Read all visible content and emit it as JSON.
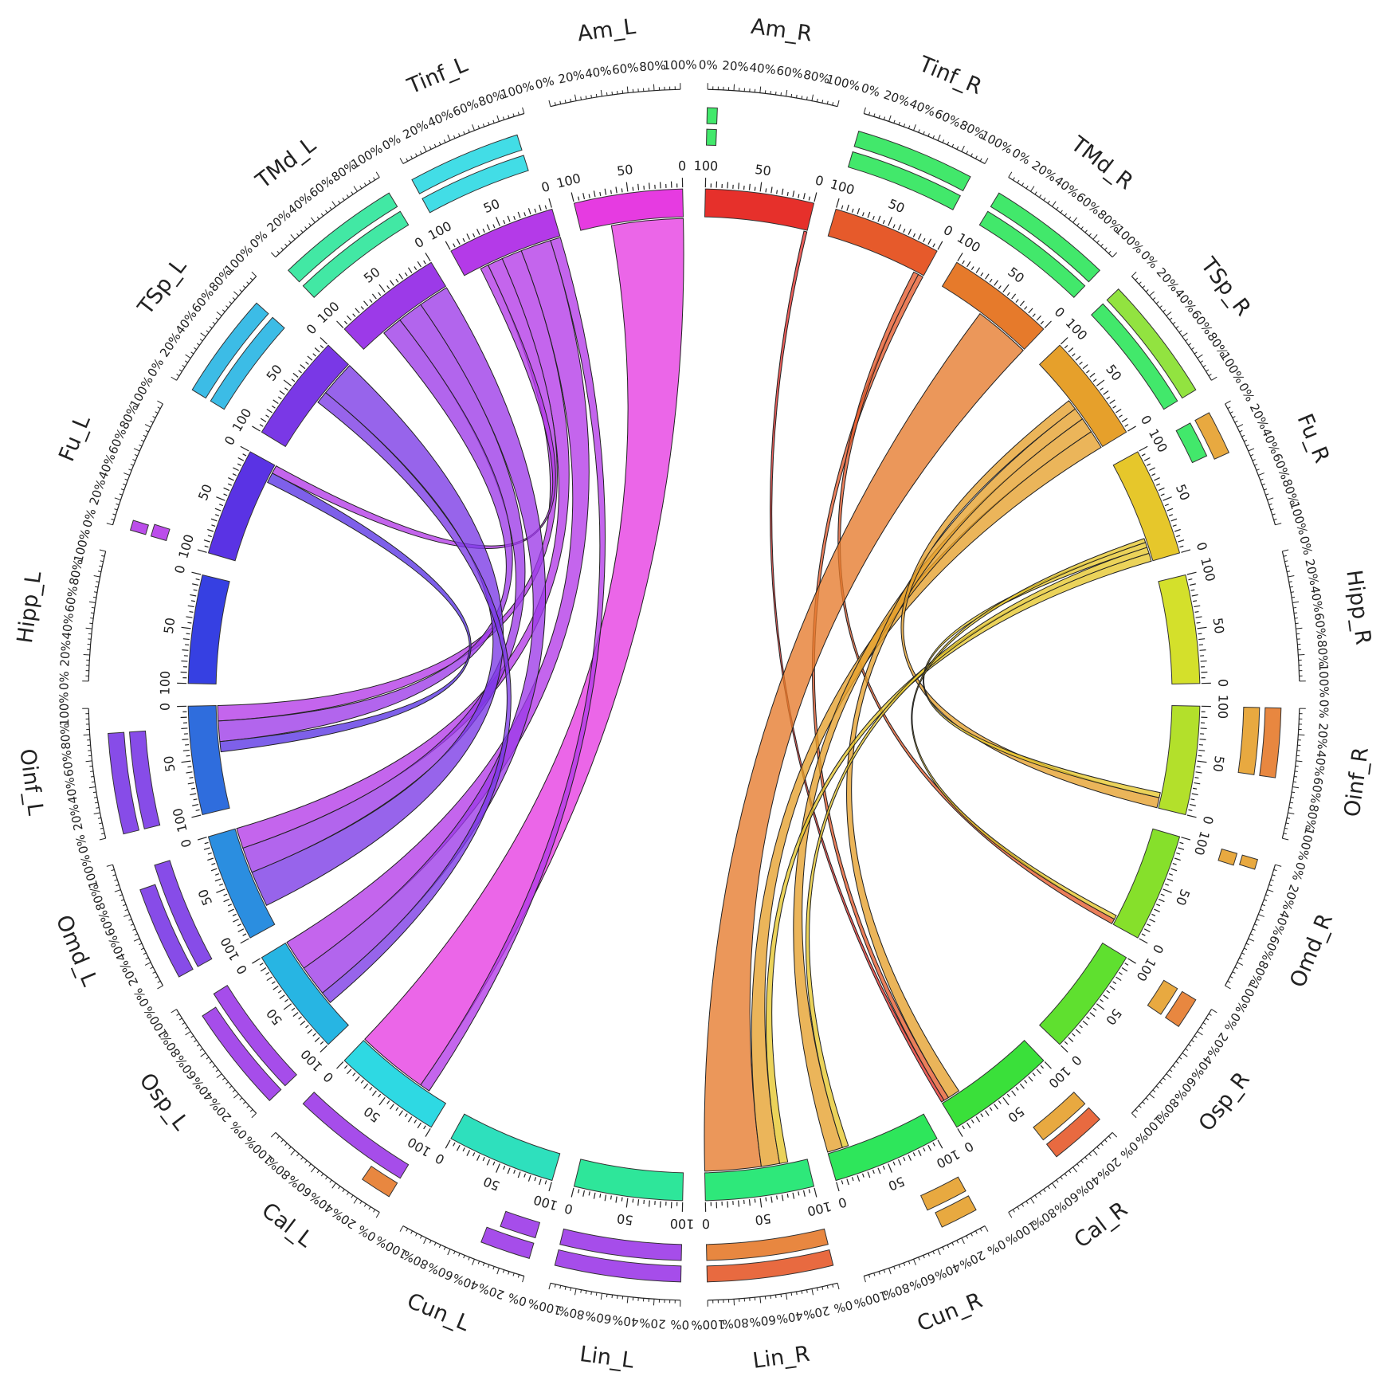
{
  "chart_data": {
    "type": "chord",
    "scale_labels": [
      "0",
      "50",
      "100"
    ],
    "pct_ticks": [
      "0%",
      "20%",
      "40%",
      "60%",
      "80%",
      "100%"
    ],
    "segments": [
      {
        "name": "Am_L",
        "color": "#e63be1"
      },
      {
        "name": "Tinf_L",
        "color": "#b43ae8"
      },
      {
        "name": "TMd_L",
        "color": "#9c3ae8"
      },
      {
        "name": "TSp_L",
        "color": "#7a38e6"
      },
      {
        "name": "Fu_L",
        "color": "#5a33e4"
      },
      {
        "name": "Hipp_L",
        "color": "#3640e2"
      },
      {
        "name": "Oinf_L",
        "color": "#2f6ddd"
      },
      {
        "name": "Omd_L",
        "color": "#2b8ee0"
      },
      {
        "name": "Osp_L",
        "color": "#27b5e3"
      },
      {
        "name": "Cal_L",
        "color": "#2ed9e3"
      },
      {
        "name": "Cun_L",
        "color": "#2ee0bd"
      },
      {
        "name": "Lin_L",
        "color": "#2ee69a"
      },
      {
        "name": "Lin_R",
        "color": "#2ee87a"
      },
      {
        "name": "Cun_R",
        "color": "#2ee65b"
      },
      {
        "name": "Cal_R",
        "color": "#3ae03a"
      },
      {
        "name": "Osp_R",
        "color": "#5fe02f"
      },
      {
        "name": "Omd_R",
        "color": "#86e02b"
      },
      {
        "name": "Oinf_R",
        "color": "#b3e02b"
      },
      {
        "name": "Hipp_R",
        "color": "#d4e02b"
      },
      {
        "name": "Fu_R",
        "color": "#e6c72b"
      },
      {
        "name": "TSp_R",
        "color": "#e6a02b"
      },
      {
        "name": "TMd_R",
        "color": "#e67a2b"
      },
      {
        "name": "Tinf_R",
        "color": "#e65a2b"
      },
      {
        "name": "Am_R",
        "color": "#e6302b"
      }
    ],
    "links": [
      {
        "source": "Am_L",
        "target": "Cal_L",
        "value": 70
      },
      {
        "source": "Tinf_L",
        "target": "Cal_L",
        "value": 10
      },
      {
        "source": "Tinf_L",
        "target": "Osp_L",
        "value": 30
      },
      {
        "source": "Tinf_L",
        "target": "Omd_L",
        "value": 20
      },
      {
        "source": "Tinf_L",
        "target": "Oinf_L",
        "value": 15
      },
      {
        "source": "Tinf_L",
        "target": "Fu_L",
        "value": 8
      },
      {
        "source": "TMd_L",
        "target": "Osp_L",
        "value": 30
      },
      {
        "source": "TMd_L",
        "target": "Omd_L",
        "value": 25
      },
      {
        "source": "TMd_L",
        "target": "Oinf_L",
        "value": 20
      },
      {
        "source": "TSp_L",
        "target": "Omd_L",
        "value": 35
      },
      {
        "source": "TSp_L",
        "target": "Osp_L",
        "value": 12
      },
      {
        "source": "Fu_L",
        "target": "Oinf_L",
        "value": 10
      },
      {
        "source": "Am_R",
        "target": "Cal_R",
        "value": 3
      },
      {
        "source": "Tinf_R",
        "target": "Cal_R",
        "value": 5
      },
      {
        "source": "Tinf_R",
        "target": "Omd_R",
        "value": 5
      },
      {
        "source": "TMd_R",
        "target": "Lin_R",
        "value": 55
      },
      {
        "source": "TSp_R",
        "target": "Lin_R",
        "value": 18
      },
      {
        "source": "TSp_R",
        "target": "Cun_R",
        "value": 15
      },
      {
        "source": "TSp_R",
        "target": "Cal_R",
        "value": 12
      },
      {
        "source": "TSp_R",
        "target": "Oinf_R",
        "value": 10
      },
      {
        "source": "Fu_R",
        "target": "Lin_R",
        "value": 8
      },
      {
        "source": "Fu_R",
        "target": "Cun_R",
        "value": 6
      },
      {
        "source": "Fu_R",
        "target": "Oinf_R",
        "value": 5
      },
      {
        "source": "Fu_R",
        "target": "Omd_R",
        "value": 4
      }
    ],
    "pct_bars": {
      "Tinf_L": [
        {
          "values": [
            0.9
          ],
          "colors": [
            "#2ed9e3"
          ]
        },
        {
          "values": [
            0.9
          ],
          "colors": [
            "#2ed9e3"
          ]
        }
      ],
      "TMd_L": [
        {
          "values": [
            1.0
          ],
          "colors": [
            "#2ee69a"
          ]
        },
        {
          "values": [
            1.0
          ],
          "colors": [
            "#2ee69a"
          ]
        }
      ],
      "TSp_L": [
        {
          "values": [
            0.85
          ],
          "colors": [
            "#27b5e3"
          ]
        },
        {
          "values": [
            0.85
          ],
          "colors": [
            "#27b5e3"
          ]
        }
      ],
      "Fu_L": [
        {
          "values": [
            0.1
          ],
          "colors": [
            "#b43ae8"
          ]
        },
        {
          "values": [
            0.08
          ],
          "colors": [
            "#b43ae8"
          ]
        }
      ],
      "Oinf_L": [
        {
          "values": [
            0.8
          ],
          "colors": [
            "#7a38e6"
          ]
        },
        {
          "values": [
            0.8
          ],
          "colors": [
            "#7a38e6"
          ]
        }
      ],
      "Omd_L": [
        {
          "values": [
            0.9
          ],
          "colors": [
            "#7a38e6"
          ]
        },
        {
          "values": [
            0.75
          ],
          "colors": [
            "#7a38e6"
          ]
        }
      ],
      "Osp_L": [
        {
          "values": [
            0.95
          ],
          "colors": [
            "#9c3ae8"
          ]
        },
        {
          "values": [
            0.85
          ],
          "colors": [
            "#9c3ae8"
          ]
        }
      ],
      "Cal_L": [
        {
          "values": [
            1.0
          ],
          "colors": [
            "#9c3ae8"
          ]
        },
        {
          "values": [
            0.25
          ],
          "colors": [
            "#e67a2b"
          ]
        }
      ],
      "Cun_L": [
        {
          "values": [
            0.3
          ],
          "colors": [
            "#9c3ae8"
          ]
        },
        {
          "values": [
            0.4
          ],
          "colors": [
            "#9c3ae8"
          ]
        }
      ],
      "Lin_L": [
        {
          "values": [
            1.0
          ],
          "colors": [
            "#9c3ae8"
          ]
        },
        {
          "values": [
            1.0
          ],
          "colors": [
            "#9c3ae8"
          ]
        }
      ],
      "Lin_R": [
        {
          "values": [
            1.0
          ],
          "colors": [
            "#e67a2b"
          ]
        },
        {
          "values": [
            1.0
          ],
          "colors": [
            "#e65a2b"
          ]
        }
      ],
      "Cun_R": [
        {
          "values": [
            0.35
          ],
          "colors": [
            "#e6a02b"
          ]
        },
        {
          "values": [
            0.3
          ],
          "colors": [
            "#e6a02b"
          ]
        }
      ],
      "Cal_R": [
        {
          "values": [
            0.45
          ],
          "colors": [
            "#e6a02b"
          ]
        },
        {
          "values": [
            0.45
          ],
          "colors": [
            "#e65a2b"
          ]
        }
      ],
      "Osp_R": [
        {
          "values": [
            0.25
          ],
          "colors": [
            "#e6a02b"
          ]
        },
        {
          "values": [
            0.25
          ],
          "colors": [
            "#e67a2b"
          ]
        }
      ],
      "Omd_R": [
        {
          "values": [
            0.1
          ],
          "colors": [
            "#e6a02b"
          ]
        },
        {
          "values": [
            0.08
          ],
          "colors": [
            "#e6a02b"
          ]
        }
      ],
      "Oinf_R": [
        {
          "values": [
            0.55
          ],
          "colors": [
            "#e6a02b"
          ]
        },
        {
          "values": [
            0.55
          ],
          "colors": [
            "#e67a2b"
          ]
        }
      ],
      "Fu_R": [
        {
          "values": [
            0.3
          ],
          "colors": [
            "#2ee65b"
          ]
        },
        {
          "values": [
            0.35
          ],
          "colors": [
            "#e6a02b"
          ]
        }
      ],
      "TSp_R": [
        {
          "values": [
            1.0
          ],
          "colors": [
            "#2ee65b"
          ]
        },
        {
          "values": [
            1.0
          ],
          "colors": [
            "#86e02b"
          ]
        }
      ],
      "TMd_R": [
        {
          "values": [
            1.0
          ],
          "colors": [
            "#2ee65b"
          ]
        },
        {
          "values": [
            1.0
          ],
          "colors": [
            "#2ee65b"
          ]
        }
      ],
      "Tinf_R": [
        {
          "values": [
            0.95
          ],
          "colors": [
            "#2ee65b"
          ]
        },
        {
          "values": [
            0.95
          ],
          "colors": [
            "#2ee65b"
          ]
        }
      ],
      "Am_R": [
        {
          "values": [
            0.08
          ],
          "colors": [
            "#2ee65b"
          ]
        },
        {
          "values": [
            0.08
          ],
          "colors": [
            "#2ee65b"
          ]
        }
      ]
    }
  }
}
